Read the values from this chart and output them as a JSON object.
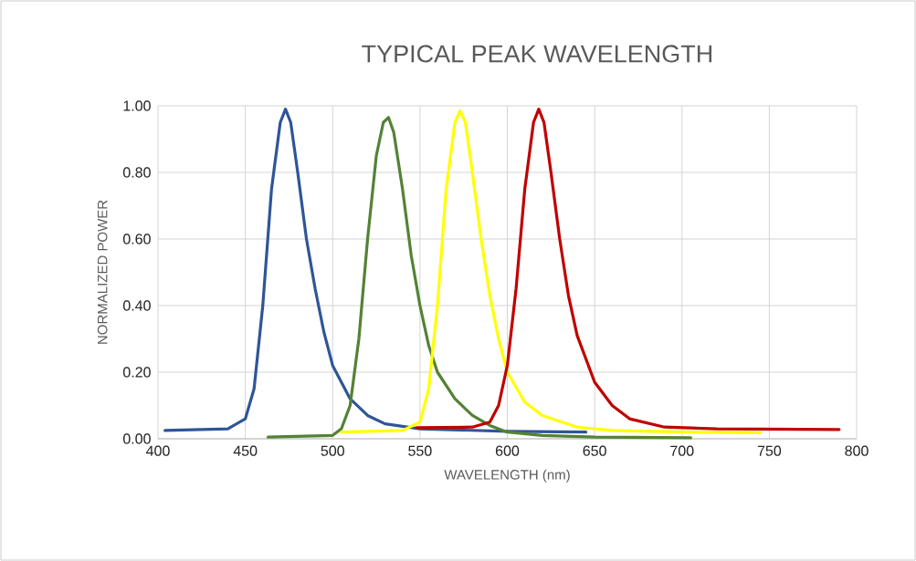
{
  "chart_data": {
    "type": "line",
    "title": "TYPICAL PEAK WAVELENGTH",
    "xlabel": "WAVELENGTH  (nm)",
    "ylabel": "NORMALIZED POWER",
    "xlim": [
      400,
      800
    ],
    "ylim": [
      0,
      1
    ],
    "xticks": [
      400,
      450,
      500,
      550,
      600,
      650,
      700,
      750,
      800
    ],
    "yticks": [
      {
        "value": 0,
        "label": "0.00"
      },
      {
        "value": 0.2,
        "label": "0.20"
      },
      {
        "value": 0.4,
        "label": "0.40"
      },
      {
        "value": 0.6,
        "label": "0.60"
      },
      {
        "value": 0.8,
        "label": "0.80"
      },
      {
        "value": 1,
        "label": "1.00"
      }
    ],
    "grid": true,
    "line_style": "solid",
    "series": [
      {
        "color": "#2f5597",
        "x": [
          404,
          440,
          450,
          455,
          460,
          465,
          470,
          473,
          476,
          480,
          485,
          490,
          495,
          500,
          510,
          520,
          530,
          550,
          600,
          645
        ],
        "values": [
          0.025,
          0.03,
          0.06,
          0.15,
          0.4,
          0.75,
          0.95,
          0.99,
          0.95,
          0.8,
          0.6,
          0.45,
          0.32,
          0.22,
          0.12,
          0.07,
          0.045,
          0.03,
          0.022,
          0.02
        ]
      },
      {
        "color": "#548235",
        "x": [
          463,
          500,
          505,
          510,
          515,
          520,
          525,
          529,
          532,
          535,
          540,
          545,
          550,
          555,
          560,
          570,
          580,
          590,
          600,
          620,
          650,
          705
        ],
        "values": [
          0.005,
          0.01,
          0.03,
          0.1,
          0.3,
          0.6,
          0.85,
          0.95,
          0.965,
          0.92,
          0.75,
          0.55,
          0.4,
          0.28,
          0.2,
          0.12,
          0.07,
          0.04,
          0.02,
          0.01,
          0.005,
          0.003
        ]
      },
      {
        "color": "#ffff00",
        "x": [
          505,
          540,
          550,
          555,
          560,
          565,
          570,
          573,
          576,
          580,
          585,
          590,
          595,
          600,
          610,
          620,
          640,
          660,
          700,
          745
        ],
        "values": [
          0.02,
          0.025,
          0.05,
          0.15,
          0.4,
          0.75,
          0.95,
          0.985,
          0.95,
          0.8,
          0.6,
          0.43,
          0.3,
          0.2,
          0.11,
          0.07,
          0.035,
          0.025,
          0.02,
          0.018
        ]
      },
      {
        "color": "#c00000",
        "x": [
          548,
          580,
          590,
          595,
          600,
          605,
          610,
          615,
          618,
          621,
          625,
          630,
          635,
          640,
          650,
          660,
          670,
          690,
          720,
          790
        ],
        "values": [
          0.033,
          0.035,
          0.05,
          0.1,
          0.22,
          0.45,
          0.75,
          0.95,
          0.99,
          0.95,
          0.8,
          0.6,
          0.43,
          0.31,
          0.17,
          0.1,
          0.06,
          0.035,
          0.03,
          0.028
        ]
      }
    ]
  }
}
